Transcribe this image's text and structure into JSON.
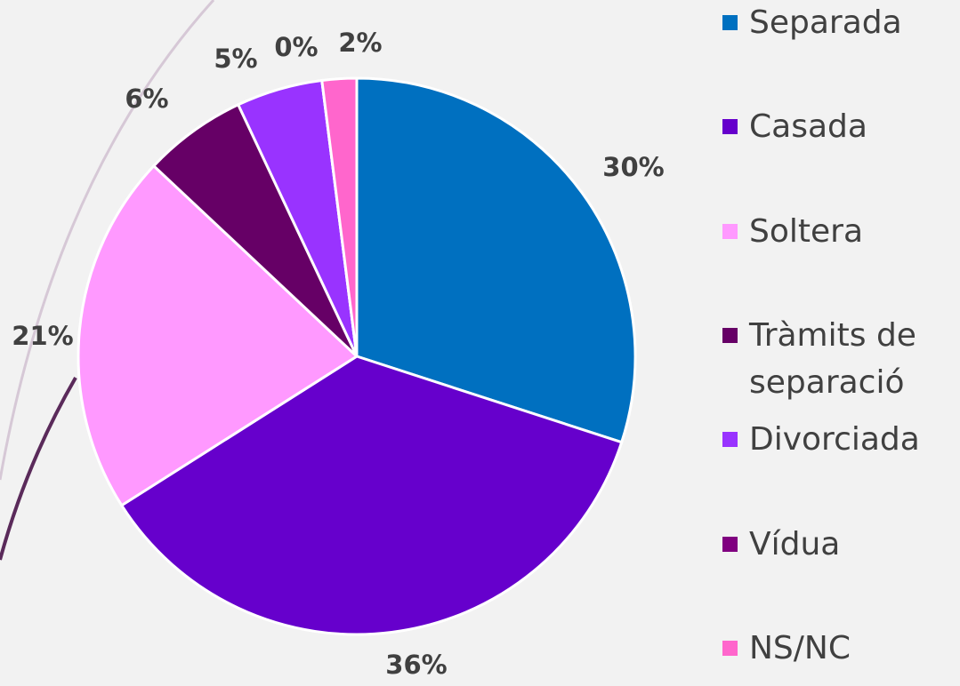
{
  "chart_data": {
    "type": "pie",
    "categories": [
      "Separada",
      "Casada",
      "Soltera",
      "Tràmits de separació",
      "Divorciada",
      "Vídua",
      "NS/NC"
    ],
    "values": [
      30,
      36,
      21,
      6,
      5,
      0,
      2
    ],
    "value_labels": [
      "30%",
      "36%",
      "21%",
      "6%",
      "5%",
      "0%",
      "2%"
    ],
    "colors": [
      "#0070c0",
      "#6600cc",
      "#ff99ff",
      "#660066",
      "#9933ff",
      "#800080",
      "#ff66cc"
    ],
    "legend": "right"
  }
}
